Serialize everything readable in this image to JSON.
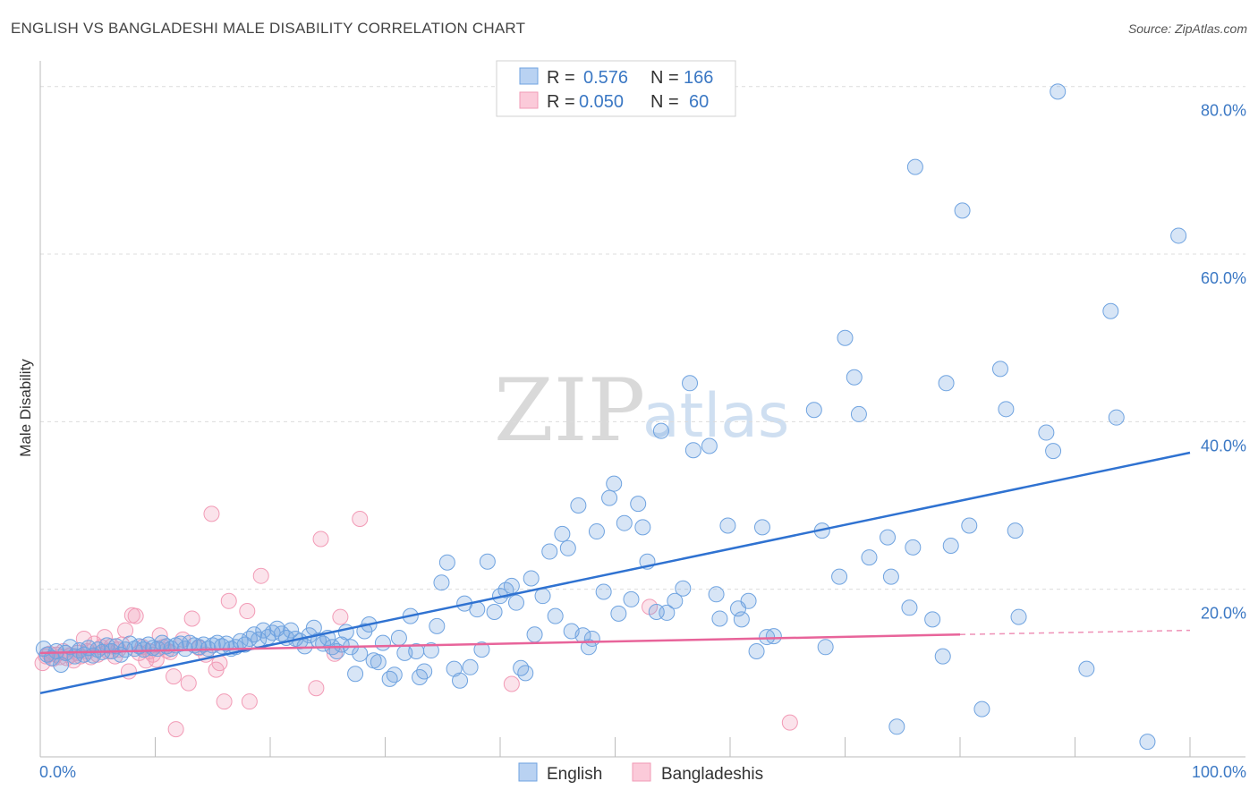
{
  "title": "ENGLISH VS BANGLADESHI MALE DISABILITY CORRELATION CHART",
  "source": "Source: ZipAtlas.com",
  "watermark": {
    "zip": "ZIP",
    "atlas": "atlas"
  },
  "colors": {
    "english": "#6fa3e0",
    "english_line": "#2f72d1",
    "bangladeshi": "#f29bb6",
    "bangladeshi_line": "#e8649a",
    "tick": "#3b78c4"
  },
  "legend": {
    "r_label": "R =",
    "n_label": "N =",
    "english": {
      "r": "0.576",
      "n": "166"
    },
    "bangladeshi": {
      "r": "0.050",
      "n": "60"
    }
  },
  "bottom_legend": {
    "english": "English",
    "bangladeshi": "Bangladeshis"
  },
  "chart_data": {
    "type": "scatter",
    "title": "ENGLISH VS BANGLADESHI MALE DISABILITY CORRELATION CHART",
    "xlabel": "",
    "ylabel": "Male Disability",
    "xlim": [
      0,
      100
    ],
    "ylim": [
      0,
      82
    ],
    "x_tick_labels": [
      "0.0%",
      "100.0%"
    ],
    "y_ticks": [
      20,
      40,
      60,
      80
    ],
    "y_tick_labels": [
      "20.0%",
      "40.0%",
      "60.0%",
      "80.0%"
    ],
    "series": [
      {
        "name": "English",
        "trend": {
          "x": [
            0,
            100
          ],
          "y": [
            7.6,
            36.3
          ]
        },
        "points": [
          [
            0.3,
            12.9
          ],
          [
            0.6,
            12.2
          ],
          [
            1.0,
            11.8
          ],
          [
            1.4,
            12.6
          ],
          [
            1.8,
            11.0
          ],
          [
            2.2,
            12.4
          ],
          [
            2.6,
            13.1
          ],
          [
            3.0,
            12.0
          ],
          [
            3.4,
            12.7
          ],
          [
            3.8,
            12.2
          ],
          [
            4.2,
            13.0
          ],
          [
            4.6,
            12.1
          ],
          [
            5.0,
            12.8
          ],
          [
            5.4,
            12.5
          ],
          [
            5.8,
            13.3
          ],
          [
            6.2,
            12.6
          ],
          [
            6.6,
            13.2
          ],
          [
            7.0,
            12.2
          ],
          [
            7.4,
            12.8
          ],
          [
            7.8,
            13.5
          ],
          [
            8.2,
            12.9
          ],
          [
            8.6,
            13.2
          ],
          [
            9.0,
            12.8
          ],
          [
            9.4,
            13.4
          ],
          [
            9.8,
            13.0
          ],
          [
            10.2,
            12.9
          ],
          [
            10.6,
            13.6
          ],
          [
            11.0,
            13.2
          ],
          [
            11.4,
            12.9
          ],
          [
            11.8,
            13.3
          ],
          [
            12.2,
            13.5
          ],
          [
            12.6,
            12.9
          ],
          [
            13.0,
            13.6
          ],
          [
            13.4,
            13.3
          ],
          [
            13.8,
            13.1
          ],
          [
            14.2,
            13.4
          ],
          [
            14.6,
            12.9
          ],
          [
            15.0,
            13.3
          ],
          [
            15.4,
            13.6
          ],
          [
            15.8,
            13.2
          ],
          [
            16.2,
            13.5
          ],
          [
            16.6,
            12.9
          ],
          [
            17.0,
            13.1
          ],
          [
            17.4,
            13.8
          ],
          [
            17.8,
            13.4
          ],
          [
            18.2,
            14.1
          ],
          [
            18.6,
            14.6
          ],
          [
            19.0,
            14.0
          ],
          [
            19.4,
            15.1
          ],
          [
            19.8,
            14.3
          ],
          [
            20.2,
            14.8
          ],
          [
            20.6,
            15.3
          ],
          [
            21.0,
            14.7
          ],
          [
            21.4,
            14.2
          ],
          [
            21.8,
            15.1
          ],
          [
            22.2,
            14.1
          ],
          [
            22.6,
            13.8
          ],
          [
            23.0,
            13.2
          ],
          [
            23.4,
            14.5
          ],
          [
            23.8,
            15.4
          ],
          [
            24.2,
            13.9
          ],
          [
            24.6,
            13.5
          ],
          [
            25.0,
            14.2
          ],
          [
            25.4,
            13.1
          ],
          [
            25.8,
            12.6
          ],
          [
            26.2,
            13.4
          ],
          [
            26.6,
            14.9
          ],
          [
            27.0,
            13.1
          ],
          [
            27.4,
            9.9
          ],
          [
            27.8,
            12.3
          ],
          [
            28.2,
            15.0
          ],
          [
            28.6,
            15.8
          ],
          [
            29.0,
            11.5
          ],
          [
            29.4,
            11.3
          ],
          [
            29.8,
            13.6
          ],
          [
            30.4,
            9.3
          ],
          [
            30.8,
            9.8
          ],
          [
            31.2,
            14.2
          ],
          [
            31.7,
            12.4
          ],
          [
            32.2,
            16.8
          ],
          [
            32.7,
            12.6
          ],
          [
            33.0,
            9.5
          ],
          [
            33.4,
            10.2
          ],
          [
            34.0,
            12.7
          ],
          [
            34.5,
            15.6
          ],
          [
            34.9,
            20.8
          ],
          [
            35.4,
            23.2
          ],
          [
            36.0,
            10.5
          ],
          [
            36.5,
            9.1
          ],
          [
            36.9,
            18.3
          ],
          [
            37.4,
            10.7
          ],
          [
            38.0,
            17.6
          ],
          [
            38.4,
            12.8
          ],
          [
            38.9,
            23.3
          ],
          [
            39.5,
            17.3
          ],
          [
            40.0,
            19.2
          ],
          [
            40.5,
            19.9
          ],
          [
            41.0,
            20.4
          ],
          [
            41.4,
            18.4
          ],
          [
            41.8,
            10.6
          ],
          [
            42.2,
            10.0
          ],
          [
            42.7,
            21.3
          ],
          [
            43.0,
            14.6
          ],
          [
            43.7,
            19.2
          ],
          [
            44.3,
            24.5
          ],
          [
            44.8,
            16.8
          ],
          [
            45.4,
            26.6
          ],
          [
            45.9,
            24.9
          ],
          [
            46.2,
            15.0
          ],
          [
            46.8,
            30.0
          ],
          [
            47.2,
            14.5
          ],
          [
            47.7,
            13.1
          ],
          [
            48.0,
            14.1
          ],
          [
            48.4,
            26.9
          ],
          [
            49.0,
            19.7
          ],
          [
            49.5,
            30.9
          ],
          [
            49.9,
            32.6
          ],
          [
            50.3,
            17.1
          ],
          [
            50.8,
            27.9
          ],
          [
            51.4,
            18.8
          ],
          [
            52.0,
            30.2
          ],
          [
            52.4,
            27.4
          ],
          [
            52.8,
            23.3
          ],
          [
            53.6,
            17.3
          ],
          [
            54.0,
            38.9
          ],
          [
            54.5,
            17.2
          ],
          [
            55.2,
            18.6
          ],
          [
            55.9,
            20.1
          ],
          [
            56.5,
            44.6
          ],
          [
            56.8,
            36.6
          ],
          [
            58.2,
            37.1
          ],
          [
            58.8,
            19.4
          ],
          [
            59.1,
            16.5
          ],
          [
            59.8,
            27.6
          ],
          [
            60.7,
            17.7
          ],
          [
            61.0,
            16.4
          ],
          [
            61.6,
            18.6
          ],
          [
            62.3,
            12.6
          ],
          [
            62.8,
            27.4
          ],
          [
            63.2,
            14.3
          ],
          [
            63.8,
            14.4
          ],
          [
            67.3,
            41.4
          ],
          [
            68.0,
            27.0
          ],
          [
            68.3,
            13.1
          ],
          [
            69.5,
            21.5
          ],
          [
            70.0,
            50.0
          ],
          [
            70.8,
            45.3
          ],
          [
            71.2,
            40.9
          ],
          [
            72.1,
            23.8
          ],
          [
            73.7,
            26.2
          ],
          [
            74.0,
            21.5
          ],
          [
            74.5,
            3.6
          ],
          [
            75.6,
            17.8
          ],
          [
            75.9,
            25.0
          ],
          [
            76.1,
            70.4
          ],
          [
            77.6,
            16.4
          ],
          [
            78.5,
            12.0
          ],
          [
            78.8,
            44.6
          ],
          [
            79.2,
            25.2
          ],
          [
            80.2,
            65.2
          ],
          [
            80.8,
            27.6
          ],
          [
            81.9,
            5.7
          ],
          [
            83.5,
            46.3
          ],
          [
            84.0,
            41.5
          ],
          [
            84.8,
            27.0
          ],
          [
            85.1,
            16.7
          ],
          [
            87.5,
            38.7
          ],
          [
            88.1,
            36.5
          ],
          [
            88.5,
            79.4
          ],
          [
            91.0,
            10.5
          ],
          [
            93.1,
            53.2
          ],
          [
            93.6,
            40.5
          ],
          [
            96.3,
            1.8
          ],
          [
            99.0,
            62.2
          ]
        ]
      },
      {
        "name": "Bangladeshis",
        "trend": {
          "x": [
            0,
            80
          ],
          "y": [
            12.4,
            14.6
          ]
        },
        "trend_dashed_to": {
          "x": 100,
          "y": 15.1
        },
        "points": [
          [
            0.2,
            11.2
          ],
          [
            0.5,
            12.0
          ],
          [
            0.8,
            12.3
          ],
          [
            1.1,
            11.7
          ],
          [
            1.4,
            12.2
          ],
          [
            1.7,
            11.9
          ],
          [
            2.0,
            12.6
          ],
          [
            2.3,
            11.8
          ],
          [
            2.6,
            12.1
          ],
          [
            2.9,
            11.5
          ],
          [
            3.2,
            12.4
          ],
          [
            3.5,
            12.0
          ],
          [
            3.8,
            14.1
          ],
          [
            4.1,
            12.6
          ],
          [
            4.4,
            11.9
          ],
          [
            4.7,
            13.5
          ],
          [
            5.0,
            12.2
          ],
          [
            5.3,
            13.1
          ],
          [
            5.6,
            14.3
          ],
          [
            5.9,
            12.6
          ],
          [
            6.2,
            13.2
          ],
          [
            6.5,
            12.0
          ],
          [
            6.8,
            12.8
          ],
          [
            7.1,
            13.4
          ],
          [
            7.4,
            15.1
          ],
          [
            7.7,
            10.2
          ],
          [
            8.0,
            16.9
          ],
          [
            8.3,
            16.8
          ],
          [
            8.6,
            12.4
          ],
          [
            8.9,
            13.1
          ],
          [
            9.2,
            11.5
          ],
          [
            9.5,
            12.6
          ],
          [
            9.8,
            12.2
          ],
          [
            10.1,
            11.6
          ],
          [
            10.4,
            14.5
          ],
          [
            10.7,
            13.1
          ],
          [
            11.0,
            12.7
          ],
          [
            11.3,
            12.5
          ],
          [
            11.6,
            9.6
          ],
          [
            11.8,
            3.3
          ],
          [
            12.4,
            14.0
          ],
          [
            12.9,
            8.8
          ],
          [
            13.2,
            16.5
          ],
          [
            13.8,
            13.0
          ],
          [
            14.4,
            12.2
          ],
          [
            14.9,
            29.0
          ],
          [
            15.3,
            10.4
          ],
          [
            15.6,
            11.2
          ],
          [
            16.0,
            6.6
          ],
          [
            16.4,
            18.6
          ],
          [
            18.0,
            17.4
          ],
          [
            18.2,
            6.6
          ],
          [
            19.2,
            21.6
          ],
          [
            24.4,
            26.0
          ],
          [
            25.6,
            12.3
          ],
          [
            26.1,
            16.7
          ],
          [
            24.0,
            8.2
          ],
          [
            27.8,
            28.4
          ],
          [
            41.0,
            8.7
          ],
          [
            53.0,
            17.9
          ],
          [
            65.2,
            4.1
          ]
        ]
      }
    ]
  }
}
